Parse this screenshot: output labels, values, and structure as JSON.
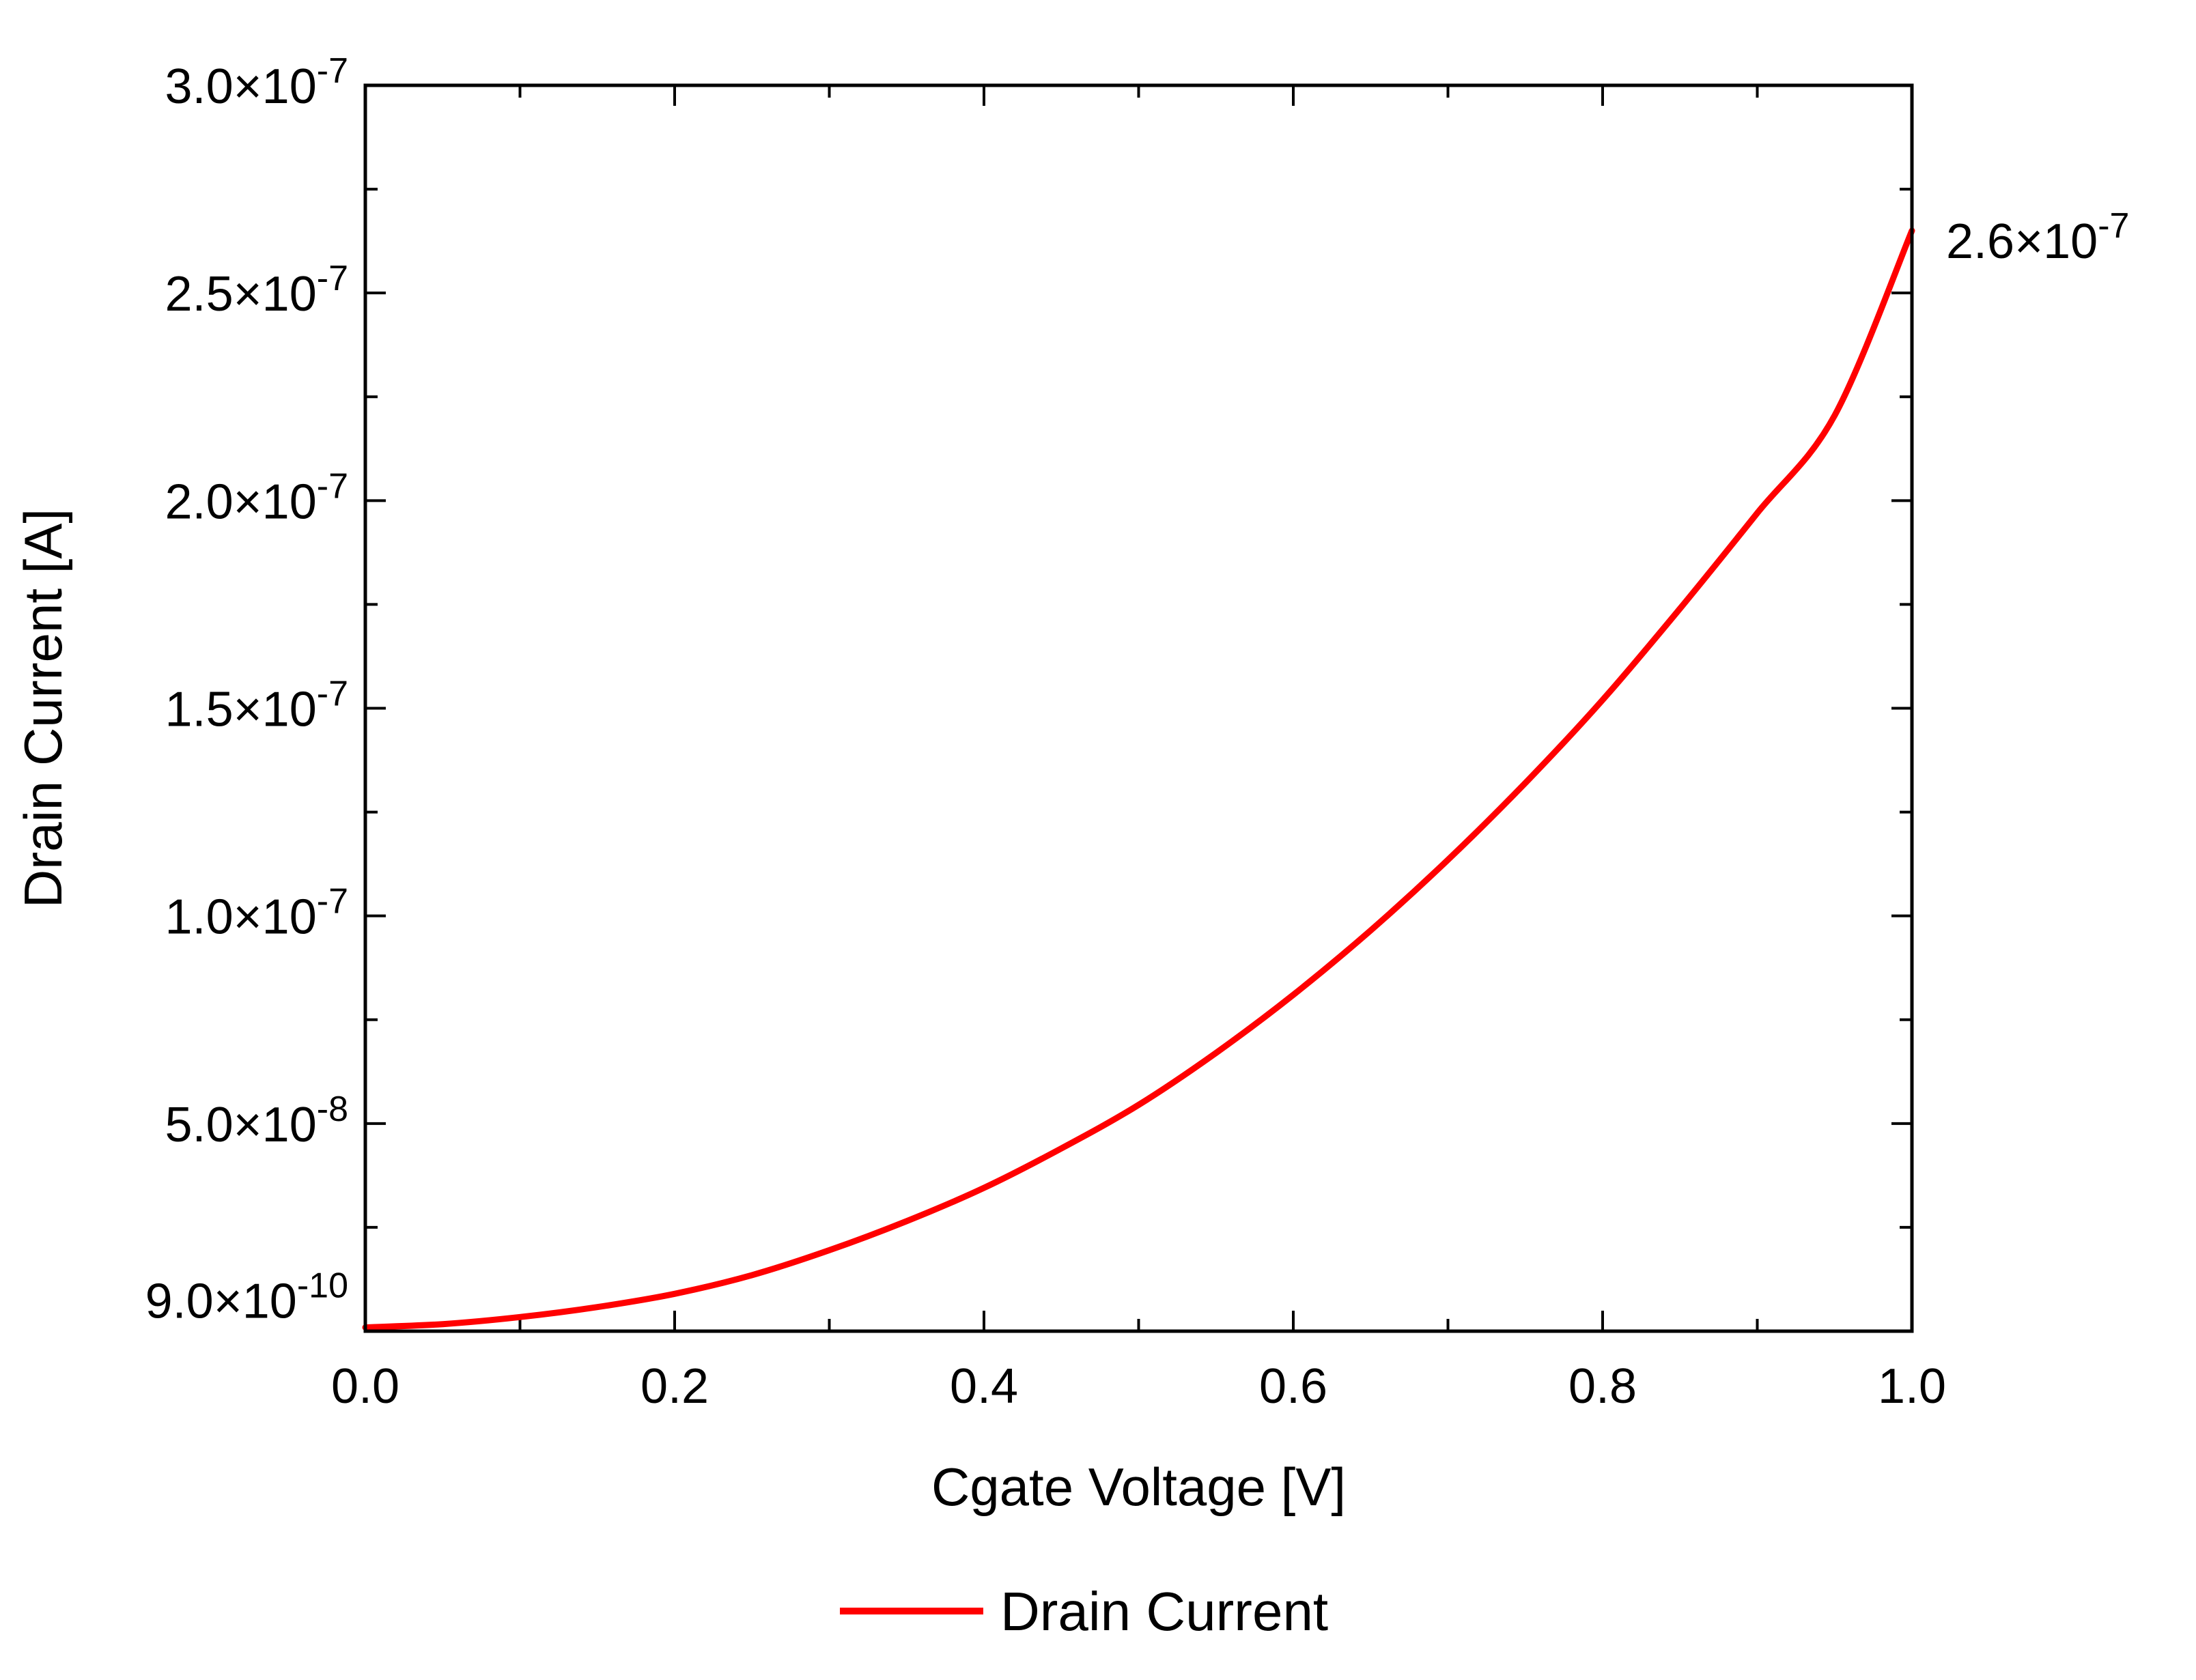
{
  "chart_data": {
    "type": "line",
    "xlabel": "Cgate Voltage [V]",
    "ylabel": "Drain Current [A]",
    "xlim": [
      0,
      1
    ],
    "ylim": [
      0,
      3e-07
    ],
    "grid": false,
    "legend_position": "bottom-center",
    "x_ticks": [
      {
        "value": 0.0,
        "label": "0.0"
      },
      {
        "value": 0.2,
        "label": "0.2"
      },
      {
        "value": 0.4,
        "label": "0.4"
      },
      {
        "value": 0.6,
        "label": "0.6"
      },
      {
        "value": 0.8,
        "label": "0.8"
      },
      {
        "value": 1.0,
        "label": "1.0"
      }
    ],
    "y_ticks": [
      {
        "value": 5e-08,
        "mantissa": "5.0×10",
        "exponent": "-8"
      },
      {
        "value": 1e-07,
        "mantissa": "1.0×10",
        "exponent": "-7"
      },
      {
        "value": 1.5e-07,
        "mantissa": "1.5×10",
        "exponent": "-7"
      },
      {
        "value": 2e-07,
        "mantissa": "2.0×10",
        "exponent": "-7"
      },
      {
        "value": 2.5e-07,
        "mantissa": "2.5×10",
        "exponent": "-7"
      },
      {
        "value": 3e-07,
        "mantissa": "3.0×10",
        "exponent": "-7"
      }
    ],
    "annotations": [
      {
        "id": "start",
        "x": 0.0,
        "y": 9e-10,
        "mantissa": "9.0×10",
        "exponent": "-10"
      },
      {
        "id": "end",
        "x": 1.0,
        "y": 2.65e-07,
        "mantissa": "2.6×10",
        "exponent": "-7"
      }
    ],
    "series": [
      {
        "name": "Drain Current",
        "color": "#ff0000",
        "x": [
          0.0,
          0.05,
          0.1,
          0.15,
          0.2,
          0.25,
          0.3,
          0.35,
          0.4,
          0.45,
          0.5,
          0.55,
          0.6,
          0.65,
          0.7,
          0.75,
          0.8,
          0.85,
          0.9,
          0.95,
          1.0
        ],
        "y": [
          9e-10,
          1.7e-09,
          3.4e-09,
          5.8e-09,
          9e-09,
          1.35e-08,
          1.95e-08,
          2.65e-08,
          3.45e-08,
          4.4e-08,
          5.45e-08,
          6.7e-08,
          8.1e-08,
          9.65e-08,
          1.135e-07,
          1.32e-07,
          1.52e-07,
          1.74e-07,
          1.97e-07,
          2.205e-07,
          2.65e-07
        ]
      }
    ]
  }
}
